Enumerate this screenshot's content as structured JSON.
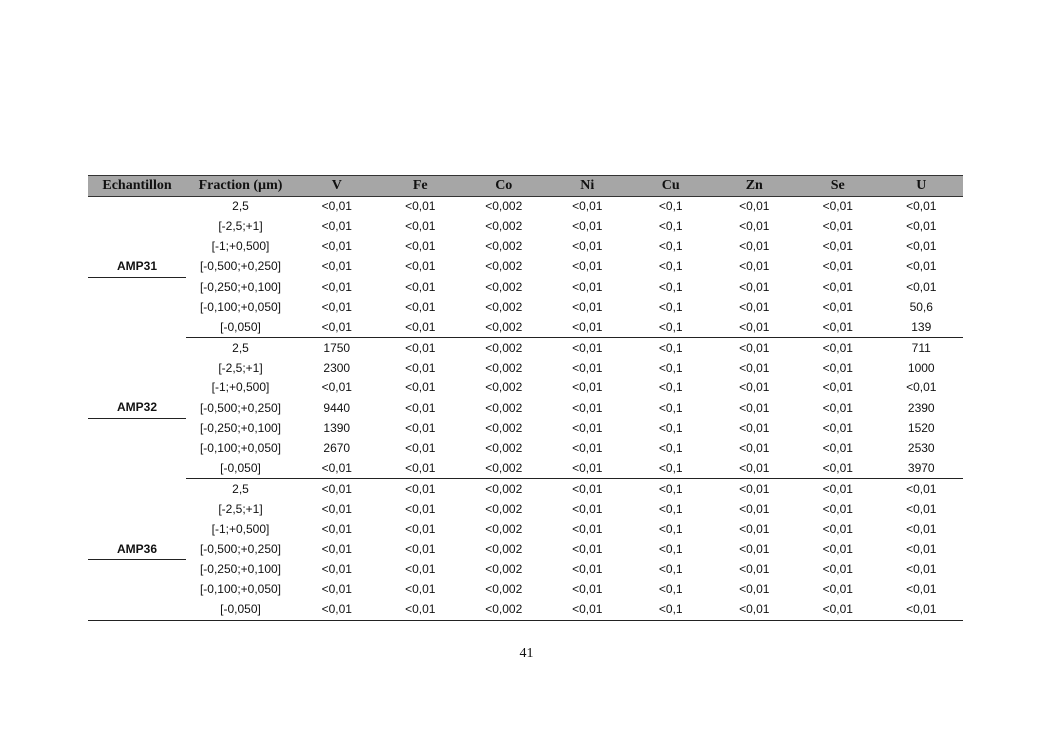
{
  "table": {
    "headers": [
      "Echantillon",
      "Fraction (µm)",
      "V",
      "Fe",
      "Co",
      "Ni",
      "Cu",
      "Zn",
      "Se",
      "U"
    ],
    "groups": [
      {
        "sample": "AMP31",
        "rows": [
          [
            "2,5",
            "<0,01",
            "<0,01",
            "<0,002",
            "<0,01",
            "<0,1",
            "<0,01",
            "<0,01",
            "<0,01"
          ],
          [
            "[-2,5;+1]",
            "<0,01",
            "<0,01",
            "<0,002",
            "<0,01",
            "<0,1",
            "<0,01",
            "<0,01",
            "<0,01"
          ],
          [
            "[-1;+0,500]",
            "<0,01",
            "<0,01",
            "<0,002",
            "<0,01",
            "<0,1",
            "<0,01",
            "<0,01",
            "<0,01"
          ],
          [
            "[-0,500;+0,250]",
            "<0,01",
            "<0,01",
            "<0,002",
            "<0,01",
            "<0,1",
            "<0,01",
            "<0,01",
            "<0,01"
          ],
          [
            "[-0,250;+0,100]",
            "<0,01",
            "<0,01",
            "<0,002",
            "<0,01",
            "<0,1",
            "<0,01",
            "<0,01",
            "<0,01"
          ],
          [
            "[-0,100;+0,050]",
            "<0,01",
            "<0,01",
            "<0,002",
            "<0,01",
            "<0,1",
            "<0,01",
            "<0,01",
            "50,6"
          ],
          [
            "[-0,050]",
            "<0,01",
            "<0,01",
            "<0,002",
            "<0,01",
            "<0,1",
            "<0,01",
            "<0,01",
            "139"
          ]
        ]
      },
      {
        "sample": "AMP32",
        "rows": [
          [
            "2,5",
            "1750",
            "<0,01",
            "<0,002",
            "<0,01",
            "<0,1",
            "<0,01",
            "<0,01",
            "711"
          ],
          [
            "[-2,5;+1]",
            "2300",
            "<0,01",
            "<0,002",
            "<0,01",
            "<0,1",
            "<0,01",
            "<0,01",
            "1000"
          ],
          [
            "[-1;+0,500]",
            "<0,01",
            "<0,01",
            "<0,002",
            "<0,01",
            "<0,1",
            "<0,01",
            "<0,01",
            "<0,01"
          ],
          [
            "[-0,500;+0,250]",
            "9440",
            "<0,01",
            "<0,002",
            "<0,01",
            "<0,1",
            "<0,01",
            "<0,01",
            "2390"
          ],
          [
            "[-0,250;+0,100]",
            "1390",
            "<0,01",
            "<0,002",
            "<0,01",
            "<0,1",
            "<0,01",
            "<0,01",
            "1520"
          ],
          [
            "[-0,100;+0,050]",
            "2670",
            "<0,01",
            "<0,002",
            "<0,01",
            "<0,1",
            "<0,01",
            "<0,01",
            "2530"
          ],
          [
            "[-0,050]",
            "<0,01",
            "<0,01",
            "<0,002",
            "<0,01",
            "<0,1",
            "<0,01",
            "<0,01",
            "3970"
          ]
        ]
      },
      {
        "sample": "AMP36",
        "rows": [
          [
            "2,5",
            "<0,01",
            "<0,01",
            "<0,002",
            "<0,01",
            "<0,1",
            "<0,01",
            "<0,01",
            "<0,01"
          ],
          [
            "[-2,5;+1]",
            "<0,01",
            "<0,01",
            "<0,002",
            "<0,01",
            "<0,1",
            "<0,01",
            "<0,01",
            "<0,01"
          ],
          [
            "[-1;+0,500]",
            "<0,01",
            "<0,01",
            "<0,002",
            "<0,01",
            "<0,1",
            "<0,01",
            "<0,01",
            "<0,01"
          ],
          [
            "[-0,500;+0,250]",
            "<0,01",
            "<0,01",
            "<0,002",
            "<0,01",
            "<0,1",
            "<0,01",
            "<0,01",
            "<0,01"
          ],
          [
            "[-0,250;+0,100]",
            "<0,01",
            "<0,01",
            "<0,002",
            "<0,01",
            "<0,1",
            "<0,01",
            "<0,01",
            "<0,01"
          ],
          [
            "[-0,100;+0,050]",
            "<0,01",
            "<0,01",
            "<0,002",
            "<0,01",
            "<0,1",
            "<0,01",
            "<0,01",
            "<0,01"
          ],
          [
            "[-0,050]",
            "<0,01",
            "<0,01",
            "<0,002",
            "<0,01",
            "<0,1",
            "<0,01",
            "<0,01",
            "<0,01"
          ]
        ]
      }
    ]
  },
  "page_number": "41"
}
